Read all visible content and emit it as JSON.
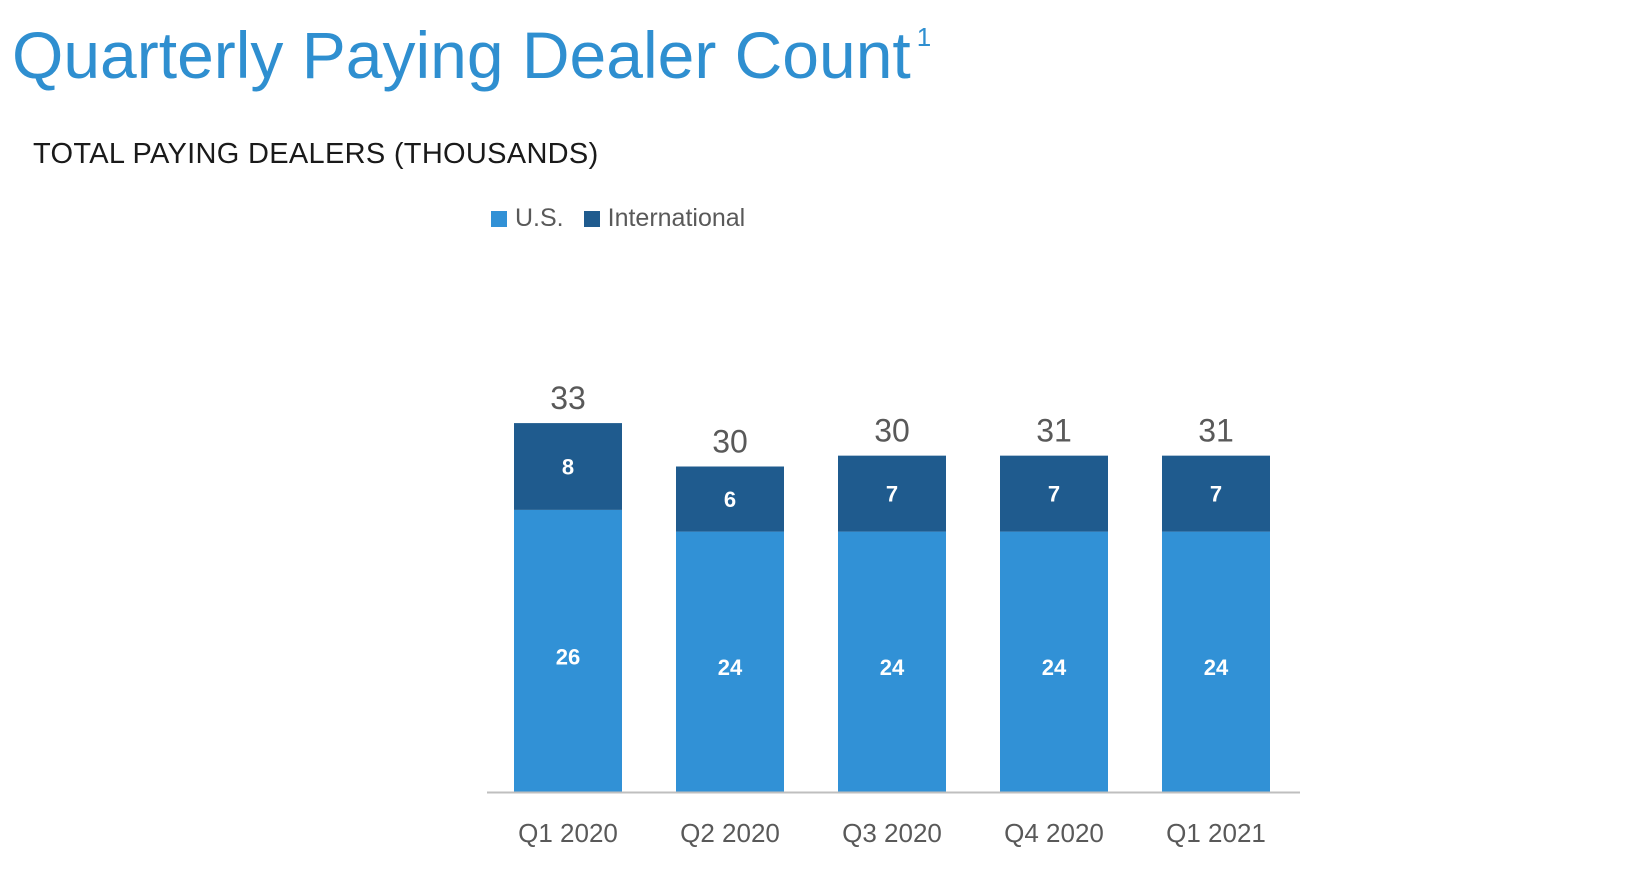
{
  "header": {
    "title": "Quarterly Paying Dealer Count",
    "title_footnote": "1",
    "subtitle": "TOTAL PAYING DEALERS (THOUSANDS)"
  },
  "colors": {
    "title": "#2f8fd0",
    "us": "#3191d6",
    "international": "#1f5b8e",
    "axis_text": "#595959",
    "total_label": "#595959",
    "segment_label": "#ffffff"
  },
  "chart_data": {
    "type": "bar",
    "stacked": true,
    "categories": [
      "Q1 2020",
      "Q2 2020",
      "Q3 2020",
      "Q4 2020",
      "Q1 2021"
    ],
    "series": [
      {
        "name": "U.S.",
        "values": [
          26,
          24,
          24,
          24,
          24
        ]
      },
      {
        "name": "International",
        "values": [
          8,
          6,
          7,
          7,
          7
        ]
      }
    ],
    "totals": [
      33,
      30,
      30,
      31,
      31
    ],
    "legend_position": "top",
    "grid": false,
    "title": "TOTAL PAYING DEALERS (THOUSANDS)"
  }
}
